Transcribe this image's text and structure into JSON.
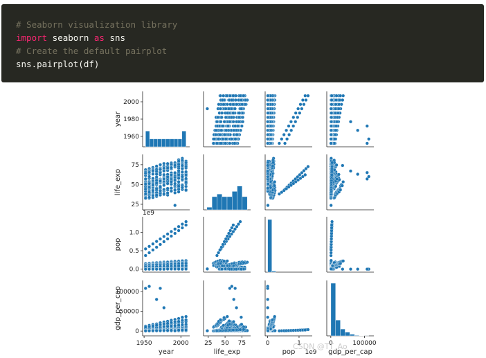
{
  "code": {
    "lines": [
      [
        {
          "t": "# Seaborn visualization library",
          "c": "comment"
        }
      ],
      [
        {
          "t": "import",
          "c": "kw"
        },
        {
          "t": " seaborn ",
          "c": "plain"
        },
        {
          "t": "as",
          "c": "kw"
        },
        {
          "t": " sns",
          "c": "plain"
        }
      ],
      [
        {
          "t": "# Create the default pairplot",
          "c": "comment"
        }
      ],
      [
        {
          "t": "sns.pairplot(df)",
          "c": "plain"
        }
      ]
    ]
  },
  "chart_data": {
    "type": "scatter",
    "variables": [
      "year",
      "life_exp",
      "pop",
      "gdp_per_cap"
    ],
    "diagonal": "histogram",
    "point_color": "#1f77b4",
    "ranges": {
      "year": [
        1948,
        2012
      ],
      "life_exp": [
        18,
        88
      ],
      "pop": [
        -0.08,
        1.42
      ],
      "gdp_per_cap": [
        -12000,
        128000
      ]
    },
    "ticks": {
      "year": [
        1960,
        1980,
        2000
      ],
      "life_exp": [
        25,
        50,
        75
      ],
      "pop": [
        0,
        1
      ],
      "gdp_per_cap": [
        0,
        100000
      ]
    },
    "tick_labels": {
      "year_y": [
        "1960",
        "1980",
        "2000"
      ],
      "year_x": [
        "1950",
        "2000"
      ],
      "life_exp": [
        "25",
        "50",
        "75"
      ],
      "pop_y": [
        "0.0",
        "0.5",
        "1.0"
      ],
      "pop_x": [
        "0",
        "1"
      ],
      "gdp_y": [
        "0",
        "50000",
        "100000"
      ],
      "gdp_x": [
        "0",
        "100000"
      ]
    },
    "offset_label": "1e9",
    "hist_year": [
      0.3,
      0.15,
      0.15,
      0.15,
      0.15,
      0.15,
      0.15,
      0.15,
      0.15,
      0.3
    ],
    "hist_life_exp": [
      0.05,
      0.25,
      0.3,
      0.25,
      0.25,
      0.35,
      0.45,
      0.25
    ],
    "hist_pop": [
      1.0,
      0.02,
      0.0,
      0.0,
      0.0,
      0.0,
      0.0,
      0.0,
      0.0,
      0.0
    ],
    "hist_gdp": [
      1.0,
      0.3,
      0.13,
      0.07,
      0.03,
      0.01,
      0.005,
      0.002
    ]
  },
  "watermark": "CSDN @TT_Ao"
}
